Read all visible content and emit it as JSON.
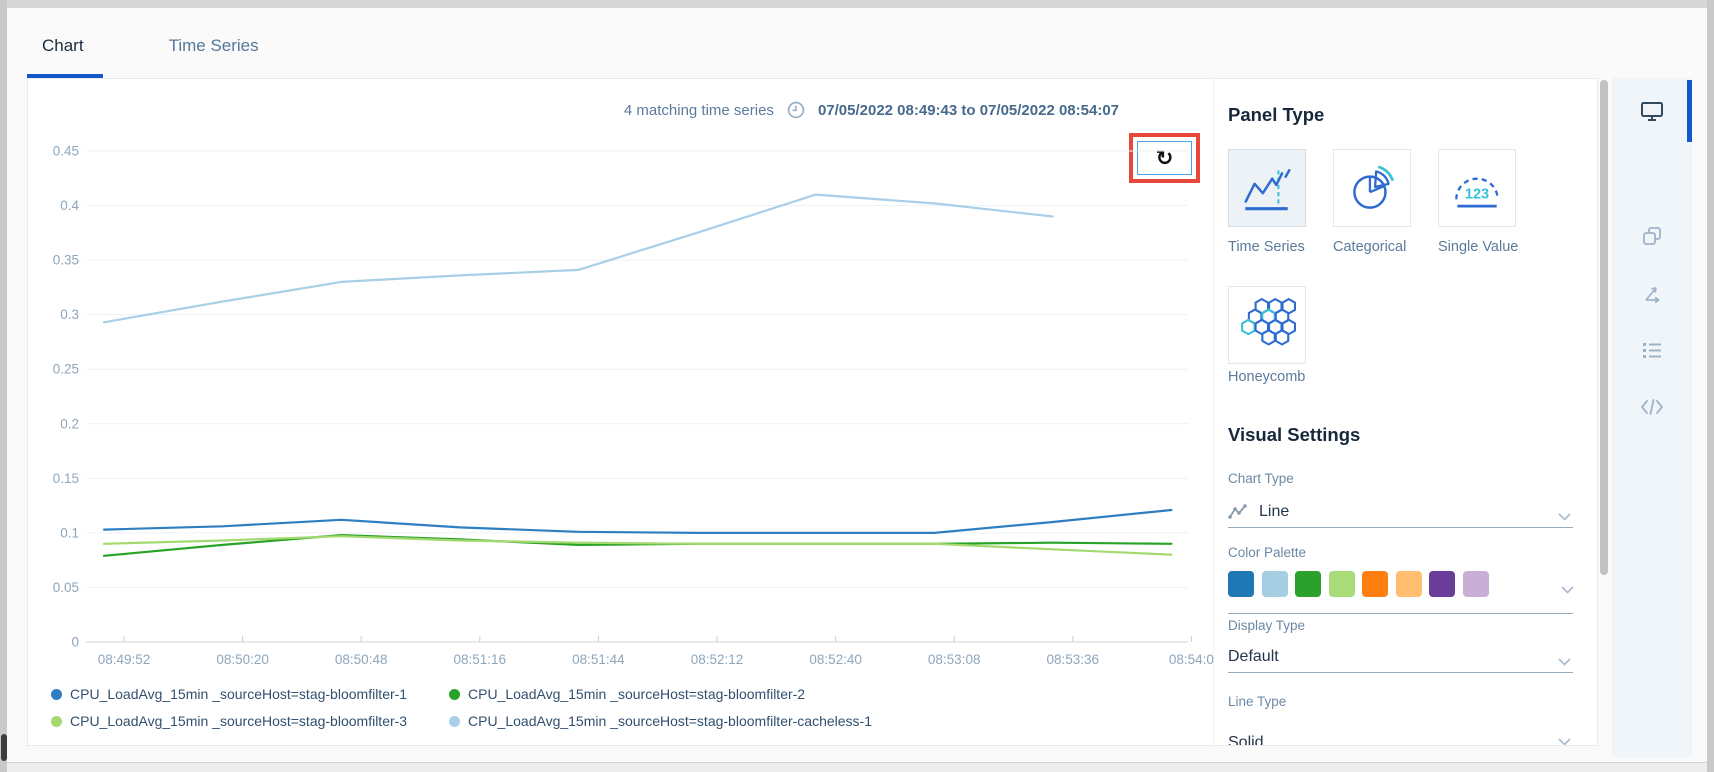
{
  "tabs": [
    {
      "label": "Chart",
      "active": true
    },
    {
      "label": "Time Series",
      "active": false
    }
  ],
  "chart_header": {
    "matching": "4 matching time series",
    "time_range": "07/05/2022 08:49:43 to 07/05/2022 08:54:07"
  },
  "refresh_button": {
    "glyph": "↻"
  },
  "chart_data": {
    "type": "line",
    "title": "",
    "xlabel": "",
    "ylabel": "",
    "ylim": [
      0,
      0.45
    ],
    "y_step": 0.05,
    "grid": true,
    "legend_position": "bottom",
    "x": [
      "08:49:52",
      "08:50:20",
      "08:50:48",
      "08:51:16",
      "08:51:44",
      "08:52:12",
      "08:52:40",
      "08:53:08",
      "08:53:36",
      "08:54:0"
    ],
    "series": [
      {
        "name": "CPU_LoadAvg_15min _sourceHost=stag-bloomfilter-1",
        "color": "#2e7fc1",
        "values": [
          0.103,
          0.106,
          0.112,
          0.105,
          0.101,
          0.1,
          0.1,
          0.1,
          0.11,
          0.121
        ]
      },
      {
        "name": "CPU_LoadAvg_15min _sourceHost=stag-bloomfilter-2",
        "color": "#27a327",
        "values": [
          0.079,
          0.089,
          0.098,
          0.094,
          0.089,
          0.09,
          0.09,
          0.09,
          0.091,
          0.09
        ]
      },
      {
        "name": "CPU_LoadAvg_15min _sourceHost=stag-bloomfilter-3",
        "color": "#a3d96e",
        "values": [
          0.09,
          0.093,
          0.097,
          0.093,
          0.091,
          0.09,
          0.09,
          0.09,
          0.085,
          0.08
        ]
      },
      {
        "name": "CPU_LoadAvg_15min _sourceHost=stag-bloomfilter-cacheless-1",
        "color": "#a9cfe8",
        "values": [
          0.293,
          0.312,
          0.33,
          0.336,
          0.341,
          0.375,
          0.41,
          0.402,
          0.39,
          null
        ]
      }
    ]
  },
  "panel_type": {
    "title": "Panel Type",
    "options": [
      {
        "label": "Time Series",
        "icon": "time-series-icon",
        "selected": true
      },
      {
        "label": "Categorical",
        "icon": "categorical-icon",
        "selected": false
      },
      {
        "label": "Single Value",
        "icon": "single-value-icon",
        "selected": false
      },
      {
        "label": "Honeycomb",
        "icon": "honeycomb-icon",
        "selected": false
      }
    ]
  },
  "visual_settings": {
    "title": "Visual Settings",
    "chart_type": {
      "label": "Chart Type",
      "value": "Line"
    },
    "color_palette": {
      "label": "Color Palette",
      "swatches": [
        "#1f77b4",
        "#a6cee3",
        "#2ca02c",
        "#a8dc78",
        "#ff7f0e",
        "#ffbe70",
        "#6a3d9a",
        "#c9aed6"
      ]
    },
    "display_type": {
      "label": "Display Type",
      "value": "Default"
    },
    "line_type": {
      "label": "Line Type",
      "value": "Solid"
    }
  },
  "side_toolbar": {
    "icons": [
      {
        "name": "monitor-icon",
        "active": true
      },
      {
        "name": "duplicate-icon",
        "active": false
      },
      {
        "name": "axes-icon",
        "active": false
      },
      {
        "name": "list-icon",
        "active": false
      },
      {
        "name": "code-icon",
        "active": false
      }
    ]
  },
  "colors": {
    "accent_blue": "#1558cb",
    "highlight_red": "#e8483c"
  }
}
